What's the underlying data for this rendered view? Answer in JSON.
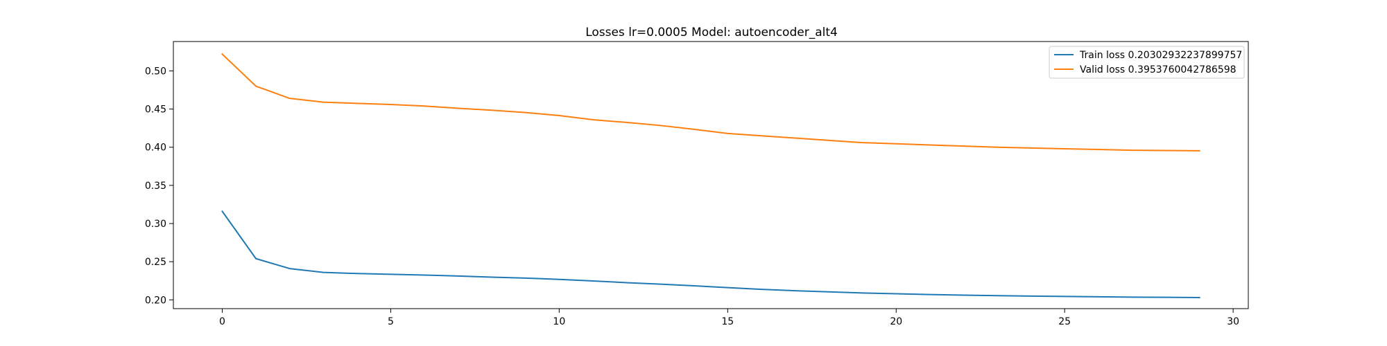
{
  "chart_data": {
    "type": "line",
    "title": "Losses lr=0.0005 Model: autoencoder_alt4",
    "xlabel": "",
    "ylabel": "",
    "xlim": [
      -1.45,
      30.45
    ],
    "ylim": [
      0.1885,
      0.5385
    ],
    "xticks": [
      0,
      5,
      10,
      15,
      20,
      25,
      30
    ],
    "yticks": [
      0.2,
      0.25,
      0.3,
      0.35,
      0.4,
      0.45,
      0.5
    ],
    "ytick_labels": [
      "0.20",
      "0.25",
      "0.30",
      "0.35",
      "0.40",
      "0.45",
      "0.50"
    ],
    "grid": false,
    "legend_position": "top-right",
    "x": [
      0,
      1,
      2,
      3,
      4,
      5,
      6,
      7,
      8,
      9,
      10,
      11,
      12,
      13,
      14,
      15,
      16,
      17,
      18,
      19,
      20,
      21,
      22,
      23,
      24,
      25,
      26,
      27,
      28,
      29
    ],
    "series": [
      {
        "name": "Train loss 0.20302932237899757",
        "color": "#1f77b4",
        "values": [
          0.316,
          0.254,
          0.241,
          0.236,
          0.2345,
          0.2335,
          0.2325,
          0.2312,
          0.2298,
          0.2285,
          0.2268,
          0.2248,
          0.2225,
          0.2206,
          0.2184,
          0.216,
          0.2138,
          0.212,
          0.2105,
          0.209,
          0.208,
          0.207,
          0.2062,
          0.2055,
          0.2049,
          0.2045,
          0.204,
          0.2036,
          0.2033,
          0.203
        ]
      },
      {
        "name": "Valid loss 0.3953760042786598",
        "color": "#ff7f0e",
        "values": [
          0.522,
          0.48,
          0.464,
          0.459,
          0.4575,
          0.456,
          0.454,
          0.451,
          0.4485,
          0.4455,
          0.4415,
          0.436,
          0.4325,
          0.4285,
          0.4235,
          0.418,
          0.415,
          0.412,
          0.409,
          0.406,
          0.4045,
          0.403,
          0.4015,
          0.4,
          0.399,
          0.398,
          0.397,
          0.396,
          0.3957,
          0.3954
        ]
      }
    ]
  }
}
